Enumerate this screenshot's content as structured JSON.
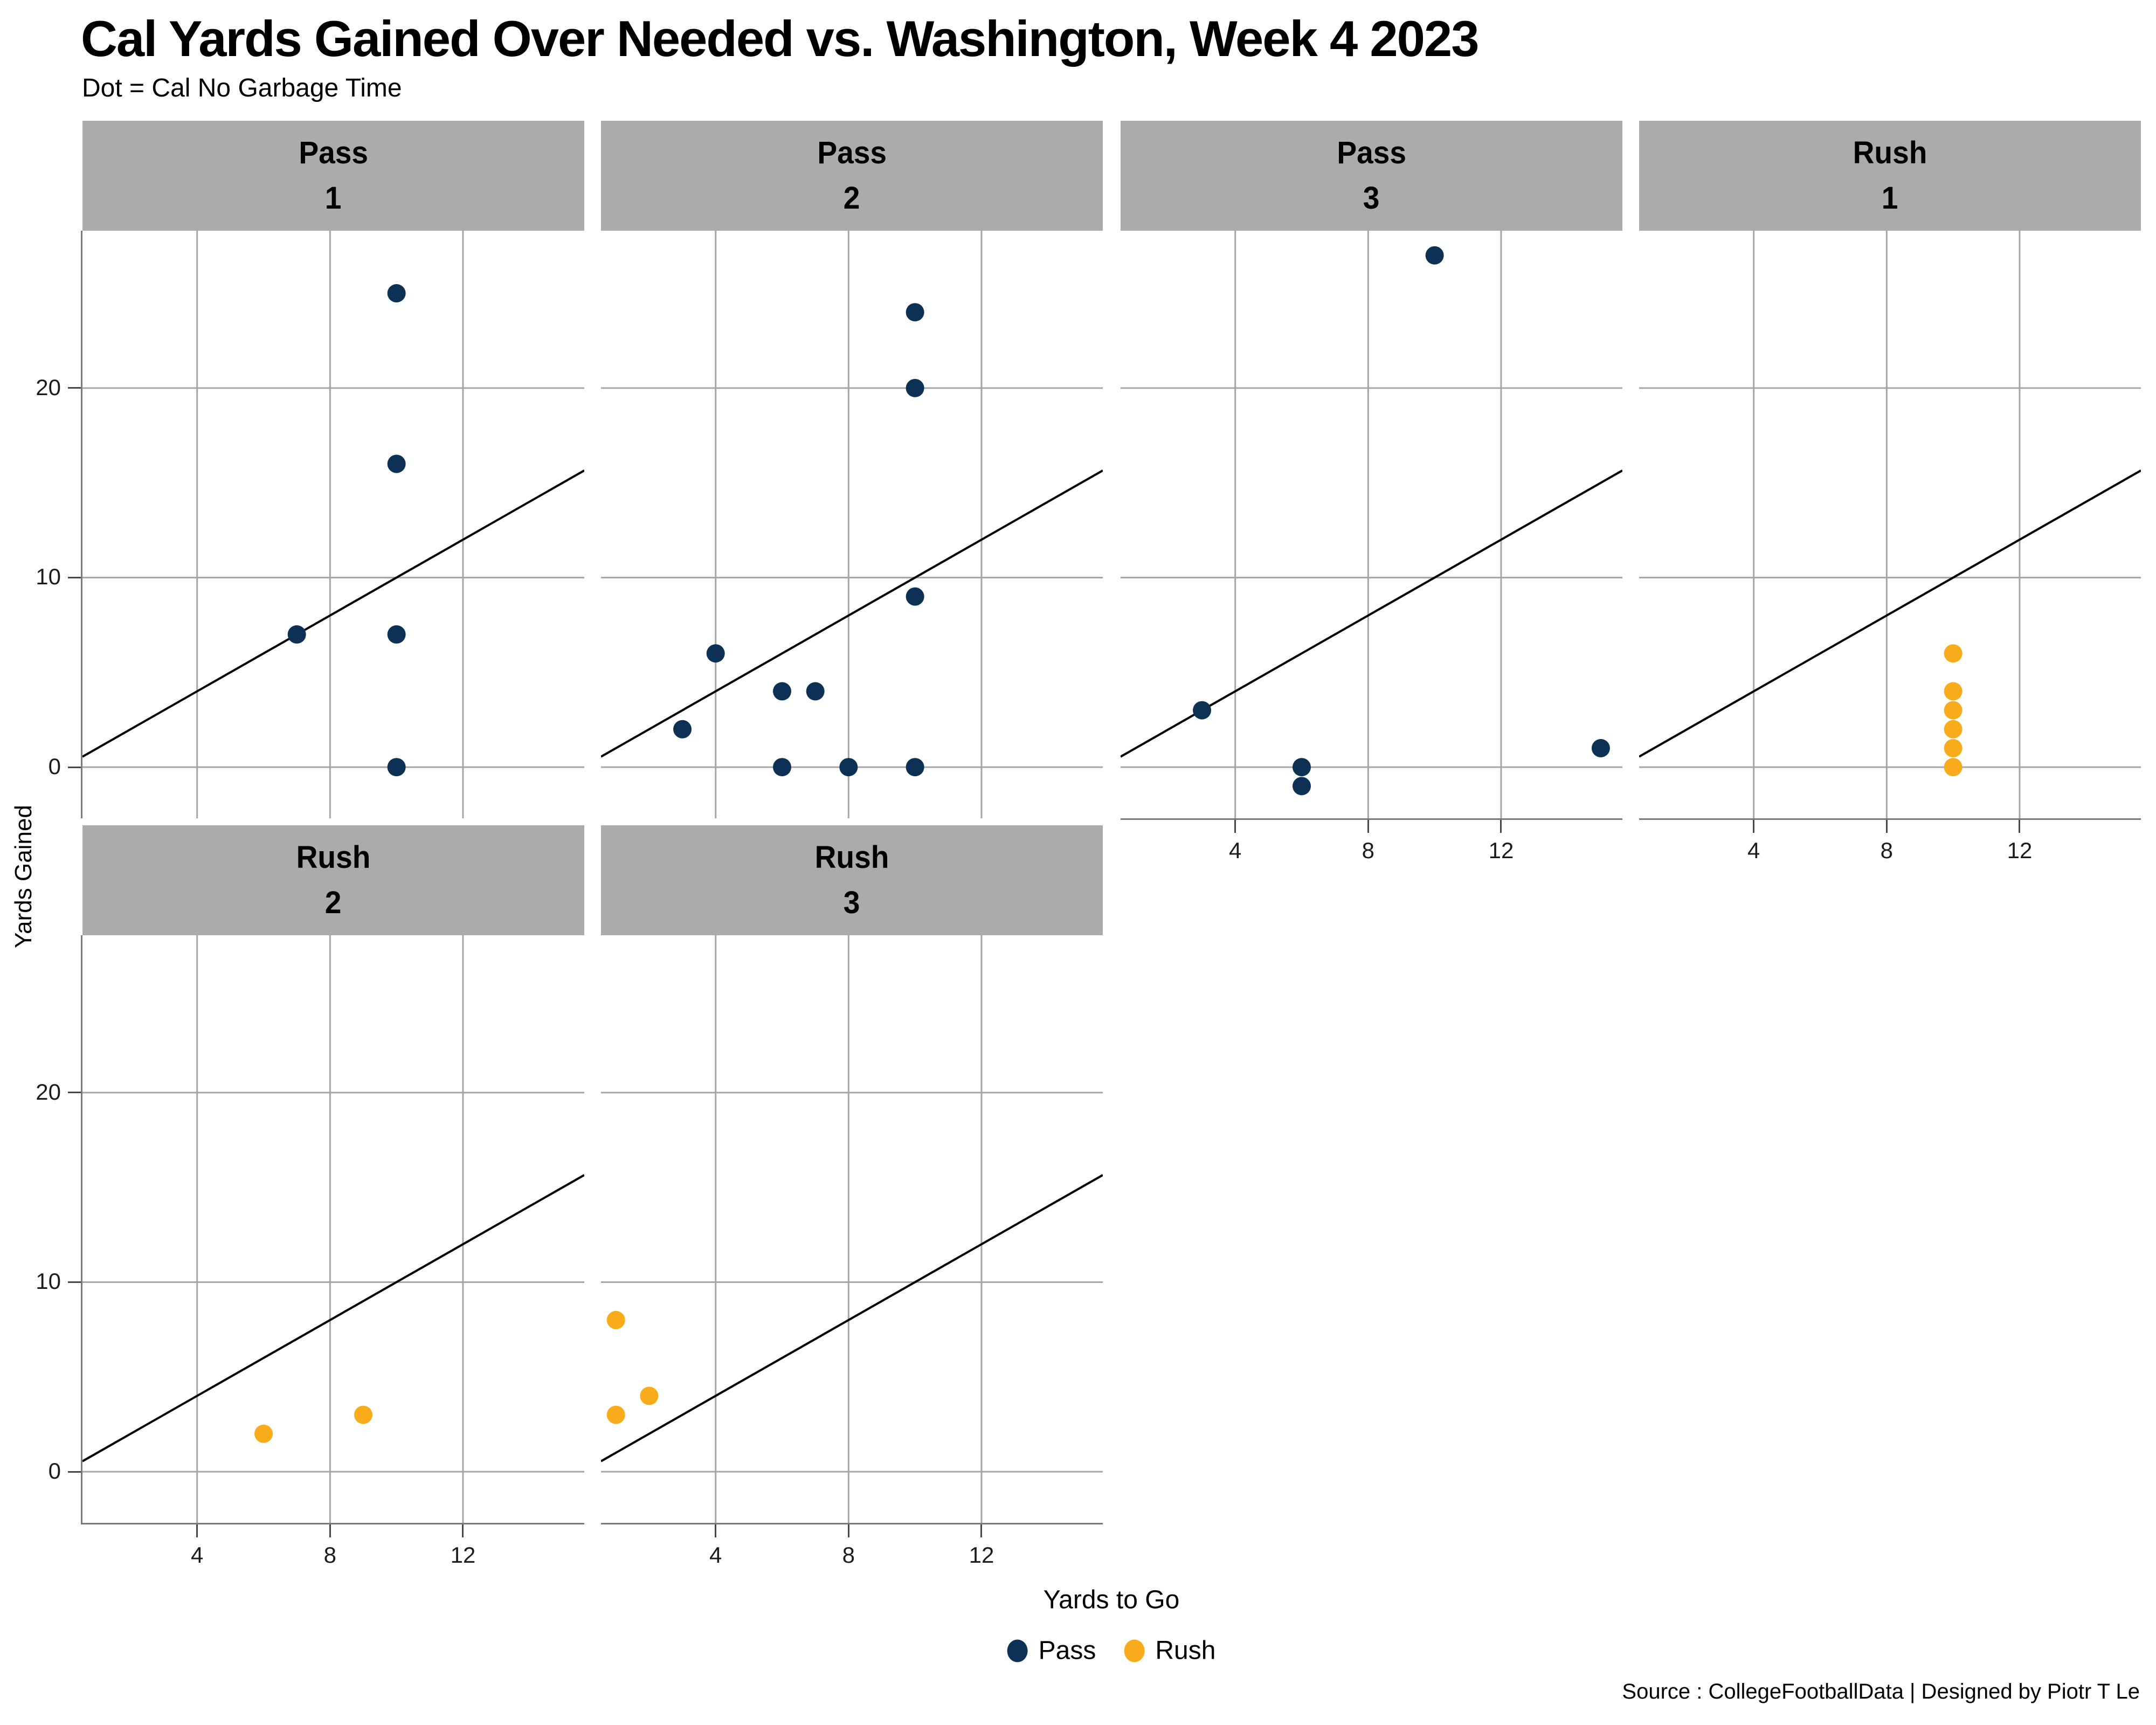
{
  "title": "Cal Yards Gained Over Needed vs. Washington, Week 4 2023",
  "subtitle": "Dot = Cal No Garbage Time",
  "caption": "Source : CollegeFootballData | Designed by Piotr T Le",
  "axes": {
    "x_title": "Yards to Go",
    "y_title": "Yards Gained",
    "x_ticks": [
      4,
      8,
      12
    ],
    "y_ticks": [
      0,
      10,
      20
    ]
  },
  "legend": {
    "items": [
      {
        "label": "Pass",
        "color": "#0D3155"
      },
      {
        "label": "Rush",
        "color": "#F8AC1B"
      }
    ]
  },
  "colors": {
    "pass": "#0D3155",
    "rush": "#F8AC1B",
    "strip_bg": "#ABABAB",
    "gridline": "#A6A6A6",
    "axis_line": "#7A7A7A",
    "tick": "#474747",
    "reference_line": "#000000"
  },
  "chart_data": {
    "type": "scatter",
    "x_label": "Yards to Go",
    "y_label": "Yards Gained",
    "x_ticks": [
      4,
      8,
      12
    ],
    "y_ticks": [
      0,
      10,
      20
    ],
    "x_domain": [
      0.55,
      15.65
    ],
    "y_domain": [
      -2.7,
      28.3
    ],
    "reference_line": "y = x identity line (yards gained = yards to go)",
    "facets": [
      {
        "category": "Pass",
        "down": "1",
        "points": [
          {
            "x": 7,
            "y": 7
          },
          {
            "x": 10,
            "y": 25
          },
          {
            "x": 10,
            "y": 16
          },
          {
            "x": 10,
            "y": 7
          },
          {
            "x": 10,
            "y": 0
          }
        ]
      },
      {
        "category": "Pass",
        "down": "2",
        "points": [
          {
            "x": 3,
            "y": 2
          },
          {
            "x": 4,
            "y": 6
          },
          {
            "x": 6,
            "y": 4
          },
          {
            "x": 7,
            "y": 4
          },
          {
            "x": 6,
            "y": 0
          },
          {
            "x": 8,
            "y": 0
          },
          {
            "x": 10,
            "y": 24
          },
          {
            "x": 10,
            "y": 20
          },
          {
            "x": 10,
            "y": 9
          },
          {
            "x": 10,
            "y": 0
          }
        ]
      },
      {
        "category": "Pass",
        "down": "3",
        "points": [
          {
            "x": 3,
            "y": 3
          },
          {
            "x": 6,
            "y": 0
          },
          {
            "x": 6,
            "y": -1
          },
          {
            "x": 10,
            "y": 27
          },
          {
            "x": 15,
            "y": 1
          }
        ]
      },
      {
        "category": "Rush",
        "down": "1",
        "points": [
          {
            "x": 10,
            "y": 6
          },
          {
            "x": 10,
            "y": 4
          },
          {
            "x": 10,
            "y": 3
          },
          {
            "x": 10,
            "y": 2
          },
          {
            "x": 10,
            "y": 1
          },
          {
            "x": 10,
            "y": 0
          }
        ]
      },
      {
        "category": "Rush",
        "down": "2",
        "points": [
          {
            "x": 6,
            "y": 2
          },
          {
            "x": 9,
            "y": 3
          }
        ]
      },
      {
        "category": "Rush",
        "down": "3",
        "points": [
          {
            "x": 1,
            "y": 8
          },
          {
            "x": 2,
            "y": 4
          },
          {
            "x": 1,
            "y": 3
          }
        ]
      }
    ]
  }
}
